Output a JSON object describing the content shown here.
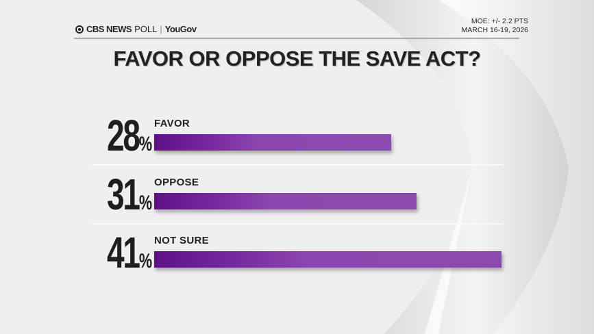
{
  "header": {
    "brand": "CBS NEWS",
    "brand_suffix": "POLL",
    "separator": "|",
    "partner": "YouGov",
    "moe": "MOE: +/- 2.2 PTS",
    "dates": "MARCH 16-19, 2026"
  },
  "colors": {
    "bar": "#8c4aae",
    "bar_dark": "#5e1187"
  },
  "chart_data": {
    "type": "bar",
    "orientation": "horizontal",
    "title": "FAVOR OR OPPOSE THE SAVE ACT?",
    "categories": [
      "FAVOR",
      "OPPOSE",
      "NOT SURE"
    ],
    "values": [
      28,
      31,
      41
    ],
    "value_labels": [
      "28",
      "31",
      "41"
    ],
    "unit": "%",
    "grid": false
  }
}
